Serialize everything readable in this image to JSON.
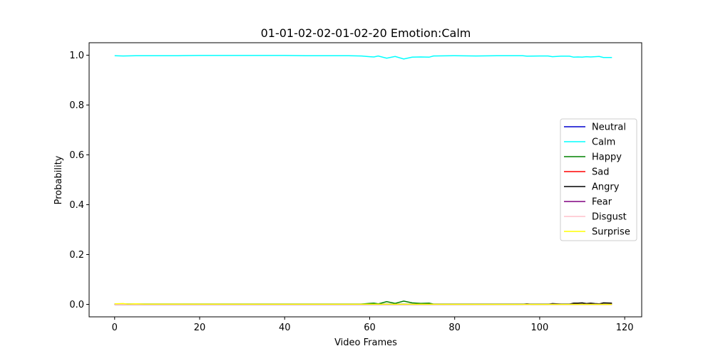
{
  "chart_data": {
    "type": "line",
    "title": "01-01-02-02-01-02-20 Emotion:Calm",
    "xlabel": "Video Frames",
    "ylabel": "Probability",
    "xlim": [
      -6,
      124
    ],
    "ylim": [
      -0.05,
      1.05
    ],
    "xticks": [
      0,
      20,
      40,
      60,
      80,
      100,
      120
    ],
    "yticks": [
      0.0,
      0.2,
      0.4,
      0.6,
      0.8,
      1.0
    ],
    "xtick_labels": [
      "0",
      "20",
      "40",
      "60",
      "80",
      "100",
      "120"
    ],
    "ytick_labels": [
      "0.0",
      "0.2",
      "0.4",
      "0.6",
      "0.8",
      "1.0"
    ],
    "grid": false,
    "legend_position": "center-right",
    "series": [
      {
        "name": "Neutral",
        "color": "#0000cd",
        "points": [
          [
            0,
            0.001
          ],
          [
            117,
            0.001
          ]
        ]
      },
      {
        "name": "Calm",
        "color": "#00ffff",
        "points": [
          [
            0,
            0.998
          ],
          [
            2,
            0.997
          ],
          [
            5,
            0.998
          ],
          [
            8,
            0.998
          ],
          [
            15,
            0.998
          ],
          [
            20,
            0.999
          ],
          [
            30,
            0.999
          ],
          [
            40,
            0.999
          ],
          [
            45,
            0.998
          ],
          [
            50,
            0.998
          ],
          [
            55,
            0.998
          ],
          [
            58,
            0.997
          ],
          [
            60,
            0.994
          ],
          [
            61,
            0.993
          ],
          [
            62,
            0.997
          ],
          [
            64,
            0.988
          ],
          [
            66,
            0.995
          ],
          [
            68,
            0.985
          ],
          [
            70,
            0.992
          ],
          [
            72,
            0.993
          ],
          [
            74,
            0.992
          ],
          [
            75,
            0.997
          ],
          [
            80,
            0.998
          ],
          [
            85,
            0.997
          ],
          [
            90,
            0.998
          ],
          [
            96,
            0.998
          ],
          [
            97,
            0.996
          ],
          [
            100,
            0.997
          ],
          [
            102,
            0.997
          ],
          [
            103,
            0.994
          ],
          [
            105,
            0.996
          ],
          [
            107,
            0.996
          ],
          [
            108,
            0.992
          ],
          [
            109,
            0.993
          ],
          [
            110,
            0.992
          ],
          [
            111,
            0.994
          ],
          [
            112,
            0.993
          ],
          [
            113,
            0.994
          ],
          [
            114,
            0.995
          ],
          [
            115,
            0.991
          ],
          [
            117,
            0.991
          ]
        ]
      },
      {
        "name": "Happy",
        "color": "#008000",
        "points": [
          [
            0,
            0.001
          ],
          [
            58,
            0.001
          ],
          [
            60,
            0.004
          ],
          [
            61,
            0.005
          ],
          [
            62,
            0.002
          ],
          [
            64,
            0.011
          ],
          [
            66,
            0.004
          ],
          [
            68,
            0.013
          ],
          [
            70,
            0.006
          ],
          [
            72,
            0.004
          ],
          [
            74,
            0.005
          ],
          [
            75,
            0.001
          ],
          [
            117,
            0.001
          ]
        ]
      },
      {
        "name": "Sad",
        "color": "#ff0000",
        "points": [
          [
            0,
            0.0
          ],
          [
            117,
            0.0
          ]
        ]
      },
      {
        "name": "Angry",
        "color": "#000000",
        "points": [
          [
            0,
            0.0
          ],
          [
            96,
            0.0
          ],
          [
            97,
            0.002
          ],
          [
            98,
            0.0
          ],
          [
            102,
            0.0
          ],
          [
            103,
            0.003
          ],
          [
            105,
            0.001
          ],
          [
            107,
            0.001
          ],
          [
            108,
            0.005
          ],
          [
            109,
            0.005
          ],
          [
            110,
            0.006
          ],
          [
            111,
            0.003
          ],
          [
            112,
            0.005
          ],
          [
            113,
            0.003
          ],
          [
            114,
            0.002
          ],
          [
            115,
            0.006
          ],
          [
            117,
            0.005
          ]
        ]
      },
      {
        "name": "Fear",
        "color": "#800080",
        "points": [
          [
            0,
            0.0
          ],
          [
            117,
            0.0
          ]
        ]
      },
      {
        "name": "Disgust",
        "color": "#ffc0cb",
        "points": [
          [
            0,
            0.0
          ],
          [
            117,
            0.0
          ]
        ]
      },
      {
        "name": "Surprise",
        "color": "#ffff00",
        "points": [
          [
            0,
            0.002
          ],
          [
            2,
            0.003
          ],
          [
            3,
            0.001
          ],
          [
            5,
            0.002
          ],
          [
            7,
            0.001
          ],
          [
            117,
            0.0
          ]
        ]
      }
    ]
  }
}
